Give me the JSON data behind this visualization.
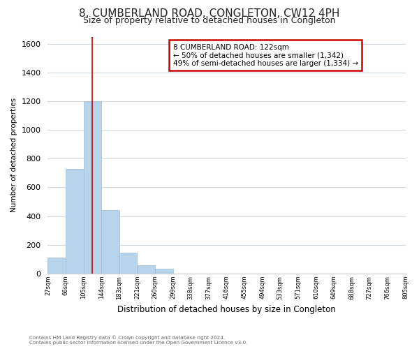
{
  "title": "8, CUMBERLAND ROAD, CONGLETON, CW12 4PH",
  "subtitle": "Size of property relative to detached houses in Congleton",
  "xlabel": "Distribution of detached houses by size in Congleton",
  "ylabel": "Number of detached properties",
  "footer_line1": "Contains HM Land Registry data © Crown copyright and database right 2024.",
  "footer_line2": "Contains public sector information licensed under the Open Government Licence v3.0.",
  "bar_heights": [
    110,
    730,
    1200,
    440,
    145,
    60,
    35,
    0,
    0,
    0,
    0,
    0,
    0,
    0,
    0,
    0,
    0,
    0,
    0,
    0
  ],
  "tick_labels": [
    "27sqm",
    "66sqm",
    "105sqm",
    "144sqm",
    "183sqm",
    "221sqm",
    "260sqm",
    "299sqm",
    "338sqm",
    "377sqm",
    "416sqm",
    "455sqm",
    "494sqm",
    "533sqm",
    "571sqm",
    "610sqm",
    "649sqm",
    "688sqm",
    "727sqm",
    "766sqm",
    "805sqm"
  ],
  "bar_color": "#b8d4ea",
  "bar_edge_color": "#9bbdd8",
  "red_line_x": 2.5,
  "annotation_title": "8 CUMBERLAND ROAD: 122sqm",
  "annotation_line2": "← 50% of detached houses are smaller (1,342)",
  "annotation_line3": "49% of semi-detached houses are larger (1,334) →",
  "annotation_box_color": "#ffffff",
  "annotation_box_edge": "#cc0000",
  "ylim": [
    0,
    1650
  ],
  "yticks": [
    0,
    200,
    400,
    600,
    800,
    1000,
    1200,
    1400,
    1600
  ],
  "grid_color": "#d0d8e0",
  "background_color": "#ffffff",
  "title_fontsize": 11,
  "subtitle_fontsize": 9
}
